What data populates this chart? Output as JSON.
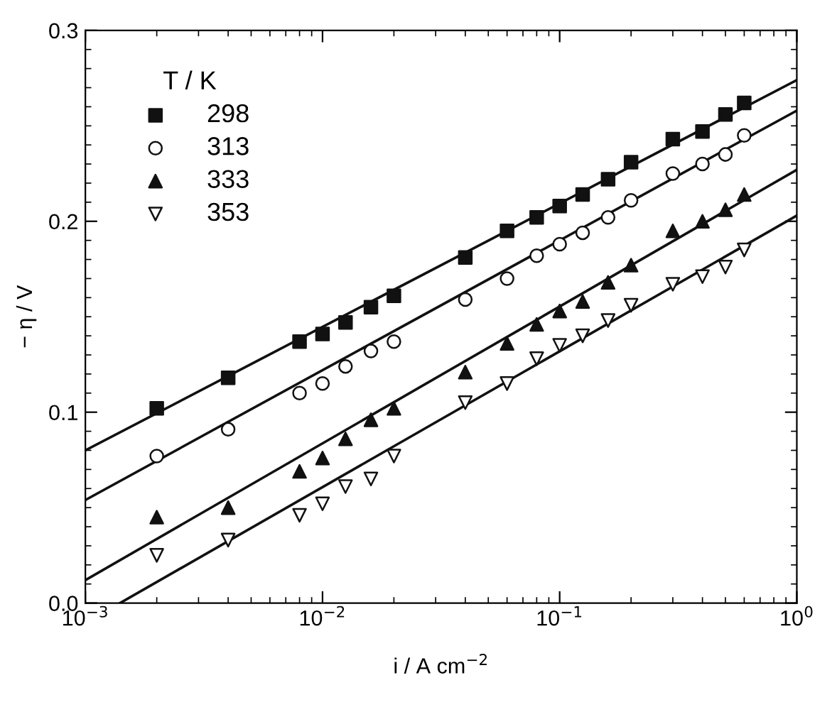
{
  "chart_data": {
    "type": "scatter",
    "xlabel": "i / A cm$^{−2}$",
    "ylabel": "− η / V",
    "legend_title": "T / K",
    "legend": "top left",
    "log": "x",
    "grid": false,
    "xlim": [
      0.001,
      1
    ],
    "xticks": [
      {
        "value": 0.001,
        "label": "10$^{−3}$"
      },
      {
        "value": 0.01,
        "label": "10$^{−2}$"
      },
      {
        "value": 0.1,
        "label": "10$^{−1}$"
      },
      {
        "value": 1,
        "label": "10$^{0}$"
      }
    ],
    "ylim": [
      0,
      0.3
    ],
    "yticks": [
      {
        "value": 0,
        "label": "0.0"
      },
      {
        "value": 0.1,
        "label": "0.1"
      },
      {
        "value": 0.2,
        "label": "0.2"
      },
      {
        "value": 0.3,
        "label": "0.3"
      }
    ],
    "x": [
      0.002,
      0.004,
      0.008,
      0.01,
      0.0125,
      0.016,
      0.02,
      0.04,
      0.06,
      0.08,
      0.1,
      0.125,
      0.16,
      0.2,
      0.3,
      0.4,
      0.5,
      0.6
    ],
    "series": [
      {
        "name": "298",
        "color": "#111111",
        "marker": "square",
        "values": [
          0.102,
          0.118,
          0.137,
          0.141,
          0.147,
          0.155,
          0.161,
          0.181,
          0.195,
          0.202,
          0.208,
          0.214,
          0.222,
          0.231,
          0.243,
          0.247,
          0.256,
          0.262
        ]
      },
      {
        "name": "313",
        "color": "#ffffff",
        "marker": "circle",
        "values": [
          0.077,
          0.091,
          0.11,
          0.115,
          0.124,
          0.132,
          0.137,
          0.159,
          0.17,
          0.182,
          0.188,
          0.194,
          0.202,
          0.211,
          0.225,
          0.23,
          0.235,
          0.245
        ]
      },
      {
        "name": "333",
        "color": "#111111",
        "marker": "triangle",
        "values": [
          0.045,
          0.05,
          0.069,
          0.076,
          0.086,
          0.096,
          0.102,
          0.121,
          0.136,
          0.146,
          0.153,
          0.158,
          0.168,
          0.177,
          0.195,
          0.2,
          0.206,
          0.214
        ]
      },
      {
        "name": "353",
        "color": "#ffffff",
        "marker": "triangle_down",
        "values": [
          0.025,
          0.033,
          0.046,
          0.052,
          0.061,
          0.065,
          0.077,
          0.105,
          0.115,
          0.128,
          0.135,
          0.14,
          0.148,
          0.156,
          0.167,
          0.171,
          0.176,
          0.185
        ]
      },
      {
        "type": "line",
        "color": "#111111",
        "line_style": "solid",
        "x": [
          0.001,
          1
        ],
        "values": [
          0.08,
          0.274
        ]
      },
      {
        "type": "line",
        "color": "#111111",
        "line_style": "solid",
        "x": [
          0.001,
          1
        ],
        "values": [
          0.054,
          0.258
        ]
      },
      {
        "type": "line",
        "color": "#111111",
        "line_style": "solid",
        "x": [
          0.001,
          1
        ],
        "values": [
          0.012,
          0.227
        ]
      },
      {
        "type": "line",
        "color": "#111111",
        "line_style": "solid",
        "x": [
          0.0014,
          1
        ],
        "values": [
          0.0,
          0.203
        ]
      }
    ]
  }
}
